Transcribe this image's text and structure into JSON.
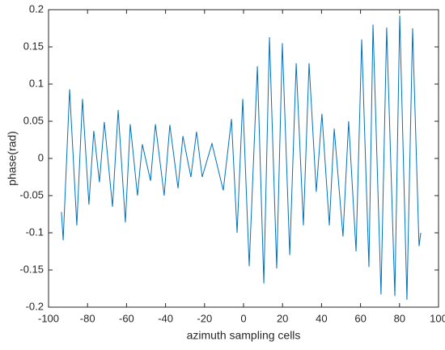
{
  "chart_data": {
    "type": "line",
    "x_label": "azimuth sampling cells",
    "y_label": "phase(rad)",
    "x": [
      -93.4,
      -92.5,
      -89.2,
      -85.5,
      -82.6,
      -79.3,
      -76.8,
      -73.9,
      -71.4,
      -67.2,
      -64.3,
      -60.6,
      -58.1,
      -54.4,
      -51.9,
      -47.7,
      -45.2,
      -40.7,
      -37.8,
      -33.6,
      -31.1,
      -27.0,
      -24.1,
      -21.2,
      -16.2,
      -10.4,
      -6.2,
      -3.3,
      -0.4,
      2.9,
      7.1,
      10.4,
      13.3,
      17.0,
      19.9,
      23.7,
      27.0,
      30.7,
      33.6,
      37.3,
      40.2,
      44.0,
      46.5,
      51.0,
      53.9,
      57.7,
      60.6,
      64.3,
      66.4,
      70.5,
      73.4,
      77.6,
      80.1,
      83.8,
      86.7,
      90.0,
      90.9
    ],
    "series": [
      {
        "color": "#0072bd",
        "values": [
          -0.072,
          -0.11,
          0.093,
          -0.09,
          0.08,
          -0.062,
          0.037,
          -0.032,
          0.049,
          -0.065,
          0.065,
          -0.086,
          0.046,
          -0.05,
          0.019,
          -0.03,
          0.046,
          -0.05,
          0.045,
          -0.04,
          0.03,
          -0.025,
          0.036,
          -0.025,
          0.02,
          -0.043,
          0.053,
          -0.1,
          0.08,
          -0.145,
          0.124,
          -0.168,
          0.163,
          -0.148,
          0.155,
          -0.13,
          0.128,
          -0.09,
          0.128,
          -0.045,
          0.06,
          -0.09,
          0.04,
          -0.105,
          0.05,
          -0.125,
          0.16,
          -0.146,
          0.18,
          -0.183,
          0.176,
          -0.185,
          0.192,
          -0.19,
          0.175,
          -0.118,
          -0.1
        ]
      }
    ],
    "xlim": [
      -100,
      100
    ],
    "xticks": [
      -100,
      -80,
      -60,
      -40,
      -20,
      0,
      20,
      40,
      60,
      80,
      100
    ],
    "ylim": [
      -0.2,
      0.2
    ],
    "yticks": [
      -0.2,
      -0.15,
      -0.1,
      -0.05,
      0,
      0.05,
      0.1,
      0.15,
      0.2
    ]
  }
}
